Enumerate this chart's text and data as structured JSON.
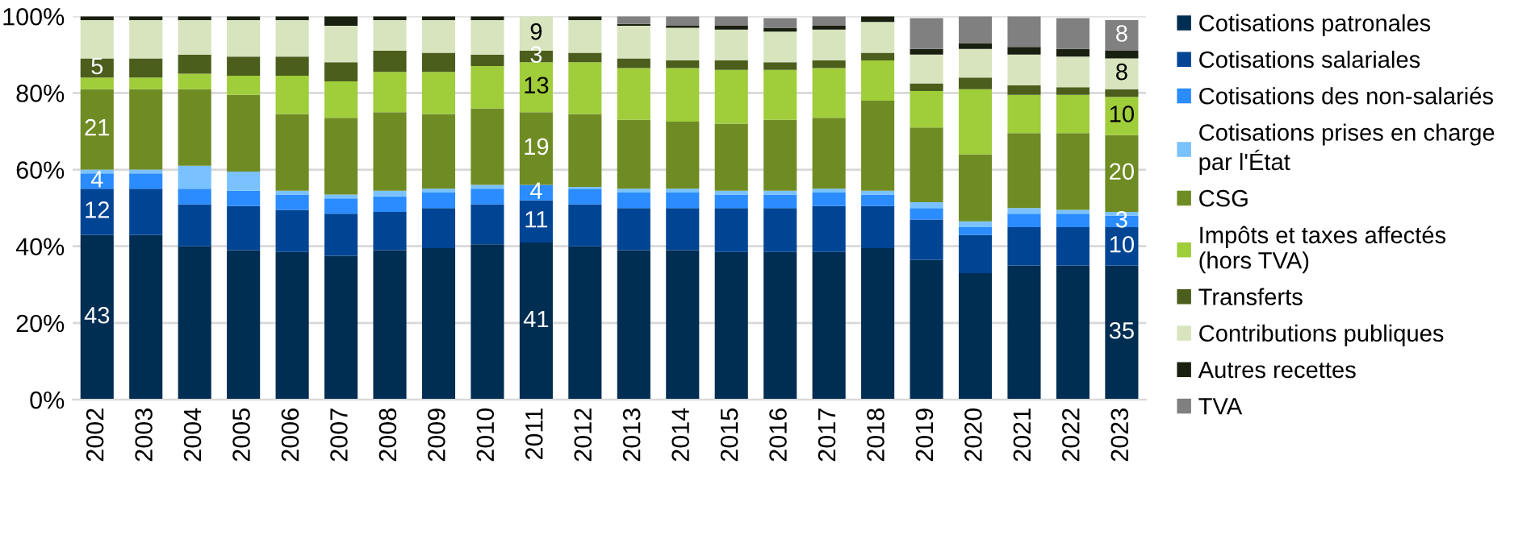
{
  "chart_data": {
    "type": "bar",
    "stacked": true,
    "categories": [
      "2002",
      "2003",
      "2004",
      "2005",
      "2006",
      "2007",
      "2008",
      "2009",
      "2010",
      "2011",
      "2012",
      "2013",
      "2014",
      "2015",
      "2016",
      "2017",
      "2018",
      "2019",
      "2020",
      "2021",
      "2022",
      "2023"
    ],
    "series": [
      {
        "name": "Cotisations patronales",
        "color": "#002d52",
        "values": [
          43,
          43,
          40,
          39,
          38.5,
          37.5,
          39,
          39.5,
          40.5,
          41,
          40,
          39,
          39,
          38.5,
          38.5,
          38.5,
          39.5,
          36.5,
          33,
          35,
          35,
          35
        ],
        "value_labels": [
          "43",
          null,
          null,
          null,
          null,
          null,
          null,
          null,
          null,
          "41",
          null,
          null,
          null,
          null,
          null,
          null,
          null,
          null,
          null,
          null,
          null,
          "35"
        ]
      },
      {
        "name": "Cotisations salariales",
        "color": "#004494",
        "values": [
          12,
          12,
          11,
          11.5,
          11,
          11,
          10,
          10.5,
          10.5,
          11,
          11,
          11,
          11,
          11.5,
          11.5,
          12,
          11,
          10.5,
          10,
          10,
          10,
          10
        ],
        "value_labels": [
          "12",
          null,
          null,
          null,
          null,
          null,
          null,
          null,
          null,
          "11",
          null,
          null,
          null,
          null,
          null,
          null,
          null,
          null,
          null,
          null,
          null,
          "10"
        ]
      },
      {
        "name": "Cotisations des non-salariés",
        "color": "#2a8cff",
        "values": [
          4,
          4,
          4,
          4,
          4,
          4,
          4,
          4,
          4,
          4,
          4,
          4,
          4,
          3.5,
          3.5,
          3.5,
          3,
          3,
          2,
          3.5,
          3.5,
          3
        ],
        "value_labels": [
          "4",
          null,
          null,
          null,
          null,
          null,
          null,
          null,
          null,
          "4",
          null,
          null,
          null,
          null,
          null,
          null,
          null,
          null,
          null,
          null,
          null,
          "3"
        ]
      },
      {
        "name": "Cotisations prises en charge par l'État",
        "color": "#7ac2ff",
        "values": [
          1,
          1,
          6,
          5,
          1,
          1,
          1.5,
          1,
          1,
          null,
          0.5,
          1,
          1,
          1,
          1,
          1,
          1,
          1.5,
          1.5,
          1.5,
          1,
          1
        ]
      },
      {
        "name": "CSG",
        "color": "#6f8c24",
        "values": [
          21,
          21,
          20,
          20,
          20,
          20,
          20.5,
          19.5,
          20,
          19,
          19,
          18,
          17.5,
          17.5,
          18.5,
          18.5,
          23.5,
          19.5,
          17.5,
          19.5,
          20,
          20
        ],
        "value_labels": [
          "21",
          null,
          null,
          null,
          null,
          null,
          null,
          null,
          null,
          "19",
          null,
          null,
          null,
          null,
          null,
          null,
          null,
          null,
          null,
          null,
          null,
          "20"
        ]
      },
      {
        "name": "Impôts et taxes affectés (hors TVA)",
        "color": "#a0cd3a",
        "values": [
          3,
          3,
          4,
          5,
          10,
          9.5,
          10.5,
          11,
          11,
          13,
          13.5,
          13.5,
          14,
          14,
          13,
          13,
          10.5,
          9.5,
          17,
          10,
          10,
          10
        ],
        "value_labels": [
          null,
          null,
          null,
          null,
          null,
          null,
          null,
          null,
          null,
          "13",
          null,
          null,
          null,
          null,
          null,
          null,
          null,
          null,
          null,
          null,
          null,
          "10"
        ]
      },
      {
        "name": "Transferts",
        "color": "#4b5e1c",
        "values": [
          5,
          5,
          5,
          5,
          5,
          5,
          5.5,
          5,
          3,
          3,
          2.5,
          2.5,
          2,
          2.5,
          2,
          2,
          2,
          2,
          3,
          2.5,
          2,
          2
        ],
        "value_labels": [
          "5",
          null,
          null,
          null,
          null,
          null,
          null,
          null,
          null,
          "3",
          null,
          null,
          null,
          null,
          null,
          null,
          null,
          null,
          null,
          null,
          null,
          null
        ]
      },
      {
        "name": "Contributions publiques",
        "color": "#d7e4bd",
        "values": [
          10,
          10,
          9,
          9.5,
          9.5,
          9.5,
          8,
          8.5,
          9,
          9,
          8.5,
          8.5,
          8.5,
          8,
          8,
          8,
          8,
          7.5,
          7.5,
          8,
          8,
          8
        ],
        "value_labels": [
          null,
          null,
          null,
          null,
          null,
          null,
          null,
          null,
          null,
          "9",
          null,
          null,
          null,
          null,
          null,
          null,
          null,
          null,
          null,
          null,
          null,
          "8"
        ]
      },
      {
        "name": "Autres recettes",
        "color": "#1a2010",
        "values": [
          1,
          1,
          1,
          1,
          1,
          2.5,
          1,
          1,
          1,
          null,
          1,
          0.5,
          0.5,
          1,
          1,
          1,
          1.5,
          1.5,
          1.5,
          2,
          2,
          2
        ]
      },
      {
        "name": "TVA",
        "color": "#808080",
        "values": [
          null,
          null,
          null,
          null,
          null,
          null,
          null,
          null,
          null,
          null,
          null,
          2,
          2.5,
          2.5,
          2.5,
          2.5,
          null,
          8,
          7,
          8,
          8,
          8
        ],
        "value_labels": [
          null,
          null,
          null,
          null,
          null,
          null,
          null,
          null,
          null,
          null,
          null,
          null,
          null,
          null,
          null,
          null,
          null,
          null,
          null,
          null,
          null,
          "8"
        ]
      }
    ],
    "ylim": [
      0,
      100
    ],
    "yticks": [
      {
        "value": 0,
        "label": "0%"
      },
      {
        "value": 20,
        "label": "20%"
      },
      {
        "value": 40,
        "label": "40%"
      },
      {
        "value": 60,
        "label": "60%"
      },
      {
        "value": 80,
        "label": "80%"
      },
      {
        "value": 100,
        "label": "100%"
      }
    ],
    "grid": "y",
    "legend": "right"
  }
}
